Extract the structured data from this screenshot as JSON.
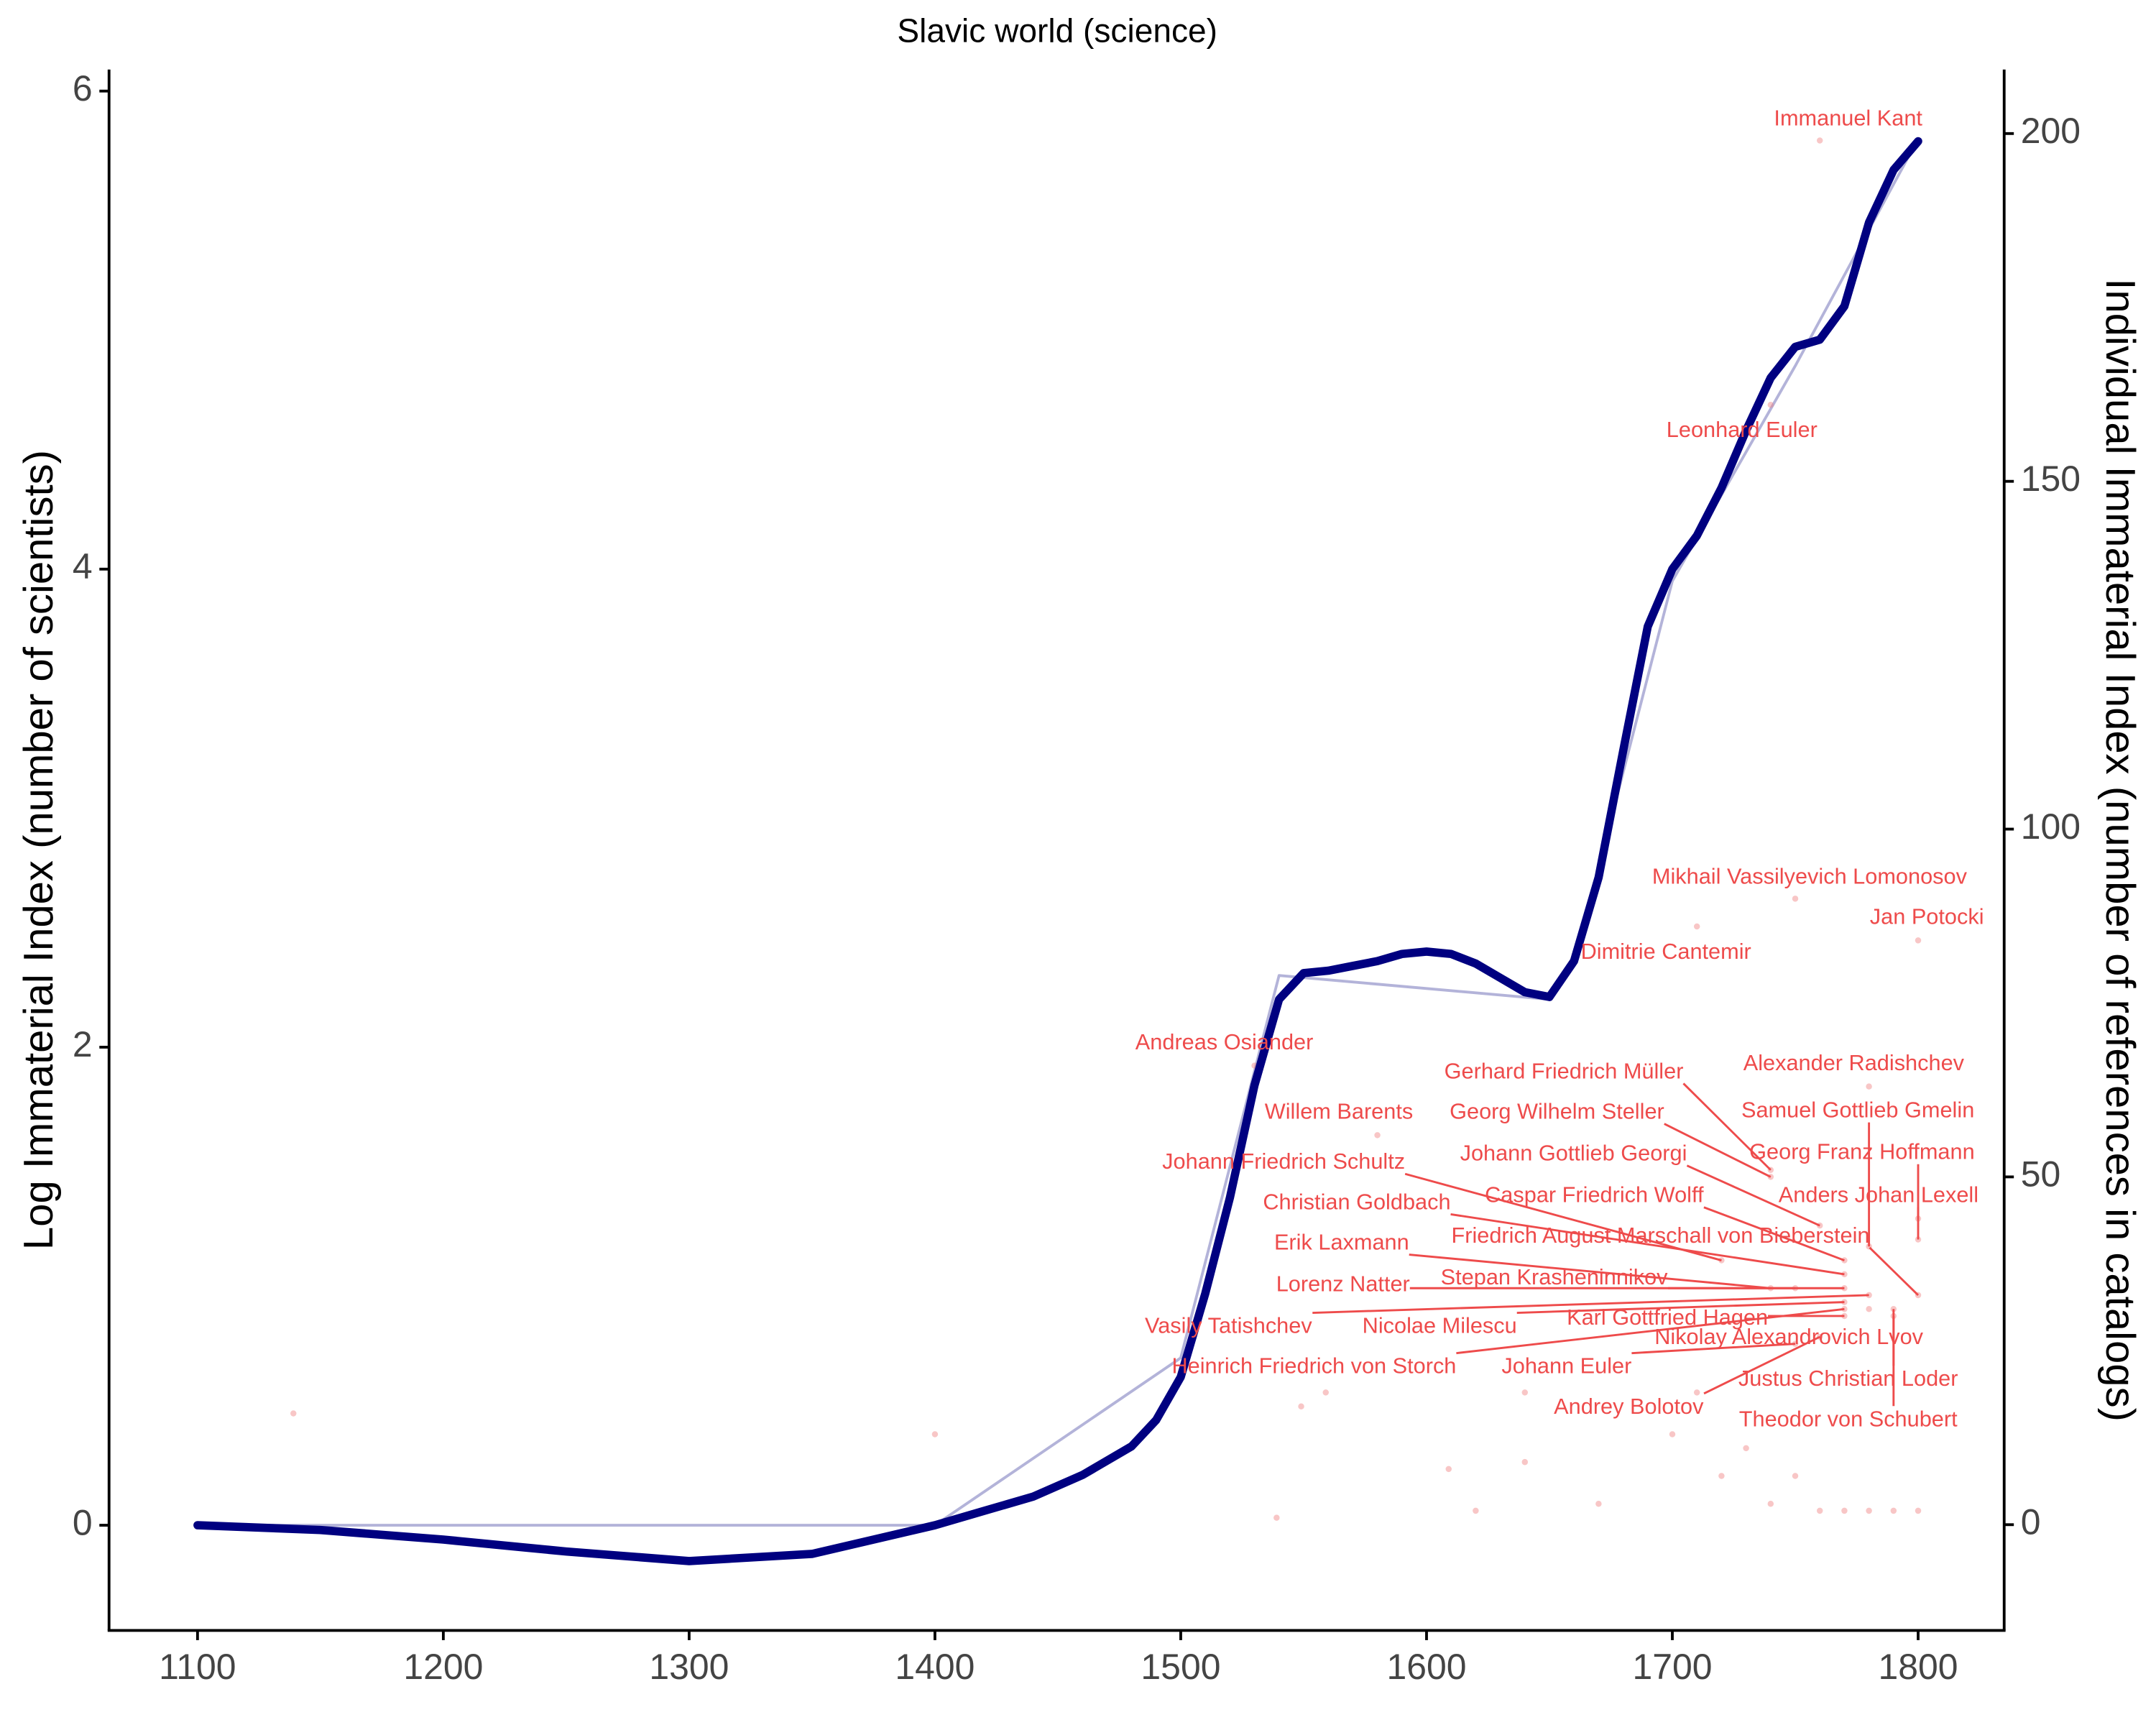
{
  "chart_data": {
    "type": "line",
    "title": "Slavic world (science)",
    "ylabel": "Log Immaterial Index (number of scientists)",
    "y2label": "Individual Immaterial Index (number of references in catalogs)",
    "xlim": [
      1064,
      1835
    ],
    "xticks": [
      1100,
      1200,
      1300,
      1400,
      1500,
      1600,
      1700,
      1800
    ],
    "ylim": [
      -0.44,
      6.09
    ],
    "yticks": [
      0,
      2,
      4,
      6
    ],
    "y2lim": [
      -15.2,
      209.2
    ],
    "y2ticks": [
      0,
      50,
      100,
      150,
      200
    ],
    "series": [
      {
        "color": "#000080",
        "x": [
          1100,
          1150,
          1200,
          1250,
          1300,
          1350,
          1400,
          1420,
          1440,
          1460,
          1480,
          1490,
          1500,
          1510,
          1520,
          1530,
          1540,
          1550,
          1560,
          1570,
          1580,
          1590,
          1600,
          1610,
          1620,
          1630,
          1640,
          1650,
          1660,
          1670,
          1680,
          1690,
          1700,
          1710,
          1720,
          1730,
          1740,
          1750,
          1760,
          1770,
          1780,
          1790,
          1800
        ],
        "values": [
          0,
          -0.02,
          -0.06,
          -0.11,
          -0.15,
          -0.12,
          0,
          0.06,
          0.12,
          0.21,
          0.33,
          0.44,
          0.62,
          0.97,
          1.37,
          1.84,
          2.2,
          2.31,
          2.32,
          2.34,
          2.36,
          2.39,
          2.4,
          2.39,
          2.35,
          2.29,
          2.23,
          2.21,
          2.36,
          2.71,
          3.24,
          3.76,
          4.0,
          4.14,
          4.34,
          4.58,
          4.8,
          4.93,
          4.96,
          5.1,
          5.45,
          5.67,
          5.79
        ]
      },
      {
        "color": "#b3b3d9",
        "x": [
          1100,
          1400,
          1500,
          1540,
          1650,
          1660,
          1700,
          1750,
          1800
        ],
        "values": [
          0,
          0,
          0.7,
          2.3,
          2.2,
          2.35,
          3.95,
          4.85,
          5.8
        ]
      }
    ],
    "points": {
      "type": "scatter",
      "axis": "y2",
      "color": "#f08080",
      "label_color": "#ee4b4b",
      "x": [
        1760,
        1740,
        1750,
        1800,
        1710,
        1530,
        1580,
        1780,
        1740,
        1740,
        1780,
        1800,
        1720,
        1760,
        1800,
        1770,
        1770,
        1800,
        1740,
        1750,
        1770,
        1780,
        1770,
        1770,
        1780,
        1770,
        1750,
        1790,
        1760,
        1790,
        1139,
        1400,
        1539,
        1549,
        1559,
        1640,
        1640,
        1670,
        1700,
        1720,
        1740,
        1760,
        1770,
        1780,
        1790,
        1800,
        1750,
        1730,
        1710,
        1609,
        1620
      ],
      "values": [
        199,
        161,
        90,
        84,
        86,
        66,
        56,
        63,
        51,
        50,
        40,
        44,
        38,
        43,
        41,
        36,
        38,
        33,
        34,
        34,
        34,
        33,
        32,
        30,
        31,
        31,
        26,
        31,
        27,
        30,
        16,
        13,
        1,
        17,
        19,
        19,
        9,
        3,
        13,
        7,
        3,
        2,
        2,
        2,
        2,
        2,
        7,
        11,
        19,
        8,
        2
      ],
      "labels": [
        "Immanuel Kant",
        "Leonhard Euler",
        "Mikhail Vassilyevich Lomonosov",
        "Jan Potocki",
        "Dimitrie Cantemir",
        "Andreas Osiander",
        "Willem Barents",
        "Alexander Radishchev",
        "Gerhard Friedrich Müller",
        "Georg Wilhelm Steller",
        "Samuel Gottlieb Gmelin",
        "Georg Franz Hoffmann",
        "Johann Friedrich Schultz",
        "Johann Gottlieb Georgi",
        "Anders Johan Lexell",
        "Christian Goldbach",
        "Caspar Friedrich Wolff",
        "Friedrich August Marschall von Bieberstein",
        "Erik Laxmann",
        "Stepan Krasheninnikov",
        "Lorenz Natter",
        "Vasily Tatishchev",
        "Nicolae Milescu",
        "Karl Gottfried Hagen",
        "Nikolay Alexandrovich Lvov",
        "Heinrich Friedrich von Storch",
        "Johann Euler",
        "Justus Christian Loder",
        "Andrey Bolotov",
        "Theodor von Schubert",
        null,
        null,
        null,
        null,
        null,
        null,
        null,
        null,
        null,
        null,
        null,
        null,
        null,
        null,
        null,
        null,
        null,
        null,
        null,
        null,
        null
      ]
    }
  }
}
